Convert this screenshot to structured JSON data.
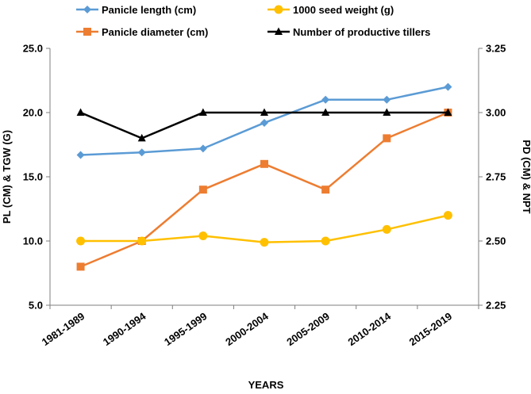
{
  "chart_data": {
    "type": "line",
    "title": "",
    "categories": [
      "1981-1989",
      "1990-1994",
      "1995-1999",
      "2000-2004",
      "2005-2009",
      "2010-2014",
      "2015-2019"
    ],
    "xlabel": "YEARS",
    "ylabel_left": "PL (CM) & TGW (G)",
    "ylabel_right": "PD (CM) & NPT",
    "ylim_left": [
      5.0,
      25.0
    ],
    "ylim_right": [
      2.25,
      3.25
    ],
    "left_ticks": [
      "5.0",
      "10.0",
      "15.0",
      "20.0",
      "25.0"
    ],
    "right_ticks": [
      "2.25",
      "2.50",
      "2.75",
      "3.00",
      "3.25"
    ],
    "grid": false,
    "legend_position": "top",
    "series": [
      {
        "name": "Panicle length (cm)",
        "axis": "left",
        "color": "#5B9BD5",
        "marker": "diamond",
        "values": [
          16.7,
          16.9,
          17.2,
          19.2,
          21.0,
          21.0,
          22.0
        ]
      },
      {
        "name": "1000 seed weight (g)",
        "axis": "left",
        "color": "#FFC000",
        "marker": "circle",
        "values": [
          10.0,
          10.0,
          10.4,
          9.9,
          10.0,
          10.9,
          12.0
        ]
      },
      {
        "name": "Panicle diameter (cm)",
        "axis": "left",
        "color": "#ED7D31",
        "marker": "square",
        "values": [
          8.0,
          10.0,
          14.0,
          16.0,
          14.0,
          18.0,
          20.0
        ]
      },
      {
        "name": "Number of productive tillers",
        "axis": "right",
        "color": "#000000",
        "marker": "triangle",
        "values": [
          3.0,
          2.9,
          3.0,
          3.0,
          3.0,
          3.0,
          3.0
        ]
      }
    ]
  }
}
